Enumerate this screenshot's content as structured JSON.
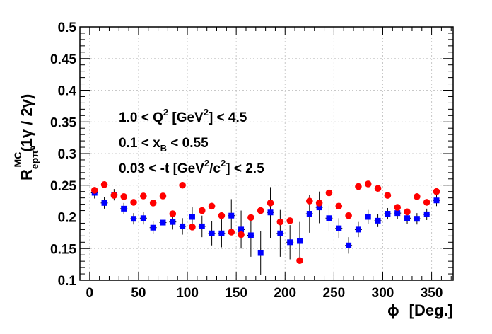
{
  "chart_data": {
    "type": "scatter",
    "xlabel": "ϕ",
    "xlabel_unit": "[Deg.]",
    "ylabel_main": "R",
    "ylabel_sub": "epπ⁰",
    "ylabel_sup": "MC",
    "ylabel_tail": "(1γ / 2γ)",
    "xlim": [
      -10,
      372
    ],
    "ylim": [
      0.1,
      0.5
    ],
    "grid": true,
    "xticks": [
      0,
      50,
      100,
      150,
      200,
      250,
      300,
      350
    ],
    "yticks": [
      0.1,
      0.15,
      0.2,
      0.25,
      0.3,
      0.35,
      0.4,
      0.45,
      0.5
    ],
    "annotations": [
      {
        "pre": "1.0 < Q",
        "sup1": "2",
        "mid1": " [GeV",
        "sup2": "2",
        "post": "] < 4.5"
      },
      {
        "pre": "0.1 < x",
        "sub": "B",
        "post": " < 0.55"
      },
      {
        "pre": "0.03 < -t [GeV",
        "sup1": "2",
        "mid1": "/c",
        "sup2": "2",
        "post": "] < 2.5"
      }
    ],
    "series": [
      {
        "marker": "square",
        "color": "#0000ff",
        "x": [
          5,
          15,
          25,
          35,
          45,
          55,
          65,
          75,
          85,
          95,
          105,
          115,
          125,
          135,
          145,
          155,
          165,
          175,
          185,
          195,
          205,
          215,
          225,
          235,
          245,
          255,
          265,
          275,
          285,
          295,
          305,
          315,
          325,
          335,
          345,
          355
        ],
        "y": [
          0.238,
          0.222,
          0.235,
          0.213,
          0.197,
          0.198,
          0.183,
          0.191,
          0.192,
          0.185,
          0.2,
          0.185,
          0.174,
          0.174,
          0.202,
          0.18,
          0.171,
          0.143,
          0.207,
          0.174,
          0.16,
          0.162,
          0.205,
          0.215,
          0.198,
          0.182,
          0.155,
          0.18,
          0.2,
          0.194,
          0.205,
          0.206,
          0.198,
          0.197,
          0.204,
          0.226
        ],
        "err": [
          0.009,
          0.009,
          0.009,
          0.009,
          0.009,
          0.01,
          0.01,
          0.011,
          0.012,
          0.013,
          0.015,
          0.017,
          0.019,
          0.022,
          0.026,
          0.03,
          0.034,
          0.035,
          0.04,
          0.037,
          0.027,
          0.03,
          0.03,
          0.025,
          0.02,
          0.016,
          0.013,
          0.012,
          0.011,
          0.01,
          0.009,
          0.009,
          0.009,
          0.009,
          0.009,
          0.009
        ]
      },
      {
        "marker": "circle",
        "color": "#ff0000",
        "x": [
          5,
          15,
          25,
          35,
          45,
          55,
          65,
          75,
          85,
          95,
          105,
          115,
          125,
          135,
          145,
          155,
          165,
          175,
          185,
          195,
          205,
          215,
          225,
          235,
          245,
          255,
          265,
          275,
          285,
          295,
          305,
          315,
          325,
          335,
          345,
          355
        ],
        "y": [
          0.242,
          0.251,
          0.234,
          0.232,
          0.223,
          0.233,
          0.222,
          0.233,
          0.205,
          0.25,
          0.184,
          0.21,
          0.217,
          0.202,
          0.176,
          0.172,
          0.199,
          0.21,
          0.222,
          0.192,
          0.194,
          0.131,
          0.225,
          0.222,
          0.238,
          0.217,
          0.202,
          0.248,
          0.252,
          0.245,
          0.234,
          0.215,
          0.208,
          0.232,
          0.223,
          0.24
        ]
      }
    ]
  }
}
